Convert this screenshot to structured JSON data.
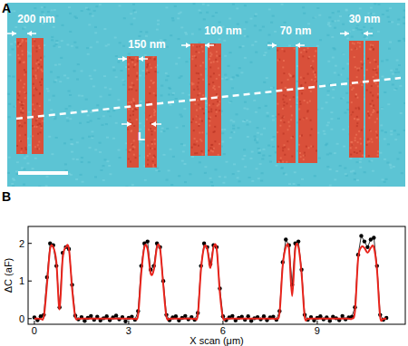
{
  "chart_data": {
    "type": "line",
    "title": "B",
    "x_label": "X scan (μm)",
    "y_label": "ΔC (aF)",
    "x": [
      0,
      0.1,
      0.2,
      0.3,
      0.4,
      0.5,
      0.6,
      0.7,
      0.8,
      0.9,
      1,
      1.1,
      1.2,
      1.3,
      1.4,
      1.5,
      1.6,
      1.7,
      1.8,
      1.9,
      2,
      2.1,
      2.2,
      2.3,
      2.4,
      2.5,
      2.6,
      2.7,
      2.8,
      2.9,
      3,
      3.1,
      3.2,
      3.3,
      3.4,
      3.5,
      3.6,
      3.7,
      3.8,
      3.9,
      4,
      4.1,
      4.2,
      4.3,
      4.4,
      4.5,
      4.6,
      4.7,
      4.8,
      4.9,
      5,
      5.1,
      5.2,
      5.3,
      5.4,
      5.5,
      5.6,
      5.7,
      5.8,
      5.9,
      6,
      6.1,
      6.2,
      6.3,
      6.4,
      6.5,
      6.6,
      6.7,
      6.8,
      6.9,
      7,
      7.1,
      7.2,
      7.3,
      7.4,
      7.5,
      7.6,
      7.7,
      7.8,
      7.9,
      8,
      8.1,
      8.2,
      8.3,
      8.4,
      8.5,
      8.6,
      8.7,
      8.8,
      8.9,
      9,
      9.1,
      9.2,
      9.3,
      9.4,
      9.5,
      9.6,
      9.7,
      9.8,
      9.9,
      10,
      10.1,
      10.2,
      10.3,
      10.4,
      10.5,
      10.6,
      10.7,
      10.8,
      10.9,
      11,
      11.1,
      11.2
    ],
    "series": [
      {
        "color": "#000000",
        "marker": "circle",
        "line_style": "solid",
        "values": [
          0.03,
          -0.04,
          0.06,
          0.1,
          1.1,
          2.0,
          1.95,
          1.4,
          0.3,
          1.75,
          1.9,
          1.85,
          0.9,
          0.08,
          -0.02,
          0.04,
          -0.06,
          0.02,
          0.07,
          -0.03,
          0.05,
          -0.05,
          0.01,
          0.06,
          -0.04,
          0.03,
          0.08,
          -0.02,
          0.04,
          -0.07,
          0.02,
          0.05,
          -0.03,
          0.2,
          1.4,
          2.0,
          2.05,
          1.3,
          1.4,
          2.0,
          1.9,
          1.0,
          0.1,
          -0.04,
          0.03,
          0.06,
          -0.05,
          0.02,
          0.07,
          -0.02,
          0.04,
          -0.03,
          0.15,
          1.4,
          2.0,
          1.9,
          1.45,
          1.95,
          1.9,
          0.8,
          0.06,
          -0.04,
          0.03,
          0.07,
          -0.05,
          0.02,
          0.05,
          -0.03,
          0.06,
          -0.06,
          0.01,
          0.04,
          -0.02,
          0.06,
          -0.04,
          0.03,
          0.05,
          -0.03,
          0.2,
          1.5,
          2.1,
          1.95,
          0.9,
          2.0,
          2.05,
          1.3,
          0.1,
          -0.03,
          0.04,
          -0.05,
          0.02,
          0.06,
          -0.02,
          0.03,
          -0.06,
          0.05,
          0.01,
          -0.04,
          0.07,
          -0.02,
          0.03,
          0.05,
          0.3,
          1.7,
          2.2,
          2.05,
          1.9,
          2.1,
          2.15,
          1.4,
          0.1,
          -0.03,
          0.02
        ]
      },
      {
        "color": "#e8241c",
        "line_style": "solid",
        "values": [
          0,
          0,
          0,
          0.05,
          0.9,
          1.85,
          1.9,
          1.5,
          0.25,
          1.6,
          1.9,
          1.85,
          0.8,
          0.05,
          0,
          0,
          0,
          0,
          0,
          0,
          0,
          0,
          0,
          0,
          0,
          0,
          0,
          0,
          0,
          0,
          0,
          0,
          0,
          0.1,
          1.2,
          1.9,
          1.85,
          1.2,
          1.3,
          1.9,
          1.85,
          0.9,
          0.05,
          0,
          0,
          0,
          0,
          0,
          0,
          0,
          0,
          0,
          0.1,
          1.3,
          1.9,
          1.85,
          1.35,
          1.9,
          1.85,
          0.7,
          0.02,
          0,
          0,
          0,
          0,
          0,
          0,
          0,
          0,
          0,
          0,
          0,
          0,
          0,
          0,
          0,
          0,
          0,
          0.15,
          1.4,
          1.9,
          1.85,
          0.6,
          1.85,
          1.9,
          1.2,
          0.05,
          0,
          0,
          0,
          0,
          0,
          0,
          0,
          0,
          0,
          0,
          0,
          0,
          0,
          0,
          0,
          0.2,
          1.6,
          1.9,
          1.88,
          1.75,
          1.88,
          1.9,
          1.3,
          0.05,
          0,
          0
        ]
      }
    ],
    "xlim": [
      -0.2,
      11.8
    ],
    "xticks": [
      0,
      3,
      6,
      9
    ],
    "ylim": [
      -0.15,
      2.45
    ],
    "yticks": [
      0,
      1,
      2
    ],
    "grid": false
  },
  "image": {
    "panel_label": "A",
    "widths": [
      "200 nm",
      "150 nm",
      "100 nm",
      "70 nm",
      "30 nm"
    ],
    "spacing_label": "L"
  }
}
